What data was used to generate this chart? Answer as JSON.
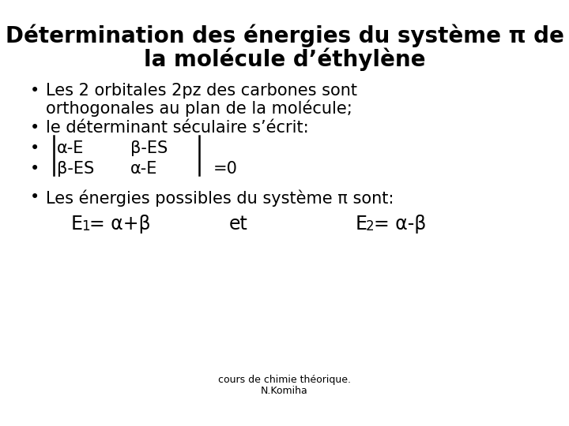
{
  "background_color": "#ffffff",
  "title_line1": "Détermination des énergies du système π de",
  "title_line2": "la molécule d’éthylène",
  "bullet1_line1": "Les 2 orbitales 2pz des carbones sont",
  "bullet1_line2": "orthogonales au plan de la molécule;",
  "bullet2": "le déterminant séculaire s’écrit:",
  "matrix_r1c1": "α-E",
  "matrix_r1c2": "β-ES",
  "matrix_r2c1": "β-ES",
  "matrix_r2c2": "α-E",
  "matrix_eq": "=0",
  "bullet5": "Les énergies possibles du système π sont:",
  "e1_label": "E",
  "e1_sub": "1",
  "e1_formula": "= α+β",
  "et": "et",
  "e2_label": "E",
  "e2_sub": "2",
  "e2_formula": "= α-β",
  "footer_line1": "cours de chimie théorique.",
  "footer_line2": "N.Komiha",
  "title_fontsize": 20,
  "body_fontsize": 15,
  "matrix_fontsize": 15,
  "energy_fontsize": 17,
  "sub_fontsize": 12,
  "footer_fontsize": 9,
  "text_color": "#000000",
  "bullet_char": "•"
}
